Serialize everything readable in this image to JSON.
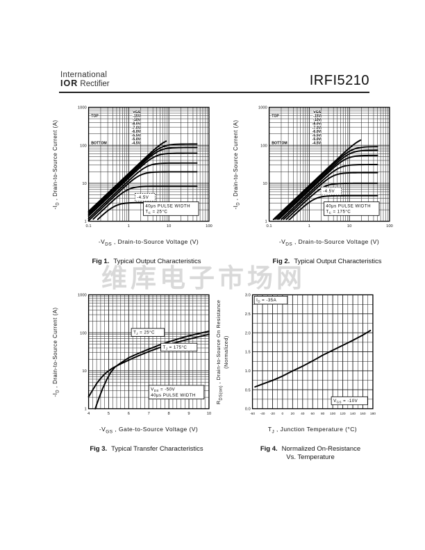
{
  "header": {
    "brand_line1": "International",
    "brand_bold": "IOR",
    "brand_rest": " Rectifier",
    "part_number": "IRFI5210"
  },
  "watermark": "维库电子市场网",
  "figures": [
    {
      "ylabel_pre": "-I",
      "ylabel_sub": "D",
      "ylabel_post": " , Drain-to-Source Current (A)",
      "ylabel_line2": "",
      "xlabel_pre": "-V",
      "xlabel_sub": "DS",
      "xlabel_post": " , Drain-to-Source Voltage (V)",
      "caption_bold": "Fig 1.",
      "caption_text": "Typical Output Characteristics",
      "caption_line2": ""
    },
    {
      "ylabel_pre": "-I",
      "ylabel_sub": "D",
      "ylabel_post": " , Drain-to-Source Current (A)",
      "ylabel_line2": "",
      "xlabel_pre": "-V",
      "xlabel_sub": "DS",
      "xlabel_post": " , Drain-to-Source Voltage (V)",
      "caption_bold": "Fig 2.",
      "caption_text": "Typical Output Characteristics",
      "caption_line2": ""
    },
    {
      "ylabel_pre": "-I",
      "ylabel_sub": "D",
      "ylabel_post": " , Drain-to-Source Current (A)",
      "ylabel_line2": "",
      "xlabel_pre": "-V",
      "xlabel_sub": "GS",
      "xlabel_post": " , Gate-to-Source Voltage (V)",
      "caption_bold": "Fig 3.",
      "caption_text": "Typical Transfer Characteristics",
      "caption_line2": ""
    },
    {
      "ylabel_pre": "R",
      "ylabel_sub": "DS(on)",
      "ylabel_post": " , Drain-to-Source On Resistance",
      "ylabel_line2": "(Normalized)",
      "xlabel_pre": "T",
      "xlabel_sub": "J",
      "xlabel_post": " , Junction Temperature (°C)",
      "caption_bold": "Fig 4.",
      "caption_text": "Normalized On-Resistance",
      "caption_line2": "Vs. Temperature"
    }
  ],
  "chart_data": [
    {
      "type": "line",
      "title": "Fig 1. Typical Output Characteristics",
      "xlabel": "-VDS, Drain-to-Source Voltage (V)",
      "ylabel": "-ID, Drain-to-Source Current (A)",
      "x": {
        "scale": "log",
        "min": 0.1,
        "max": 100,
        "ticks": [
          0.1,
          1,
          10,
          100
        ]
      },
      "y": {
        "scale": "log",
        "min": 1,
        "max": 1000,
        "ticks": [
          1,
          10,
          100,
          1000
        ]
      },
      "legend": {
        "title": "VGS",
        "rows": [
          [
            "TOP",
            "-15V"
          ],
          [
            "",
            "-10V"
          ],
          [
            "",
            "-8.0V"
          ],
          [
            "",
            "-7.0V"
          ],
          [
            "",
            "-6.0V"
          ],
          [
            "",
            "-5.5V"
          ],
          [
            "",
            "-5.0V"
          ],
          [
            "BOTTOM",
            "-4.5V"
          ]
        ]
      },
      "series": [
        {
          "name": "-15V",
          "model": "saturation",
          "rds": 0.055,
          "isat": 160,
          "vmax": 8.5
        },
        {
          "name": "-10V",
          "model": "saturation",
          "rds": 0.06,
          "isat": 108,
          "vmax": 50
        },
        {
          "name": "-8.0V",
          "model": "saturation",
          "rds": 0.066,
          "isat": 88,
          "vmax": 50
        },
        {
          "name": "-7.0V",
          "model": "saturation",
          "rds": 0.073,
          "isat": 62,
          "vmax": 50
        },
        {
          "name": "-6.0V",
          "model": "saturation",
          "rds": 0.085,
          "isat": 34,
          "vmax": 50
        },
        {
          "name": "-5.5V",
          "model": "saturation",
          "rds": 0.097,
          "isat": 20,
          "vmax": 50
        },
        {
          "name": "-5.0V",
          "model": "saturation",
          "rds": 0.115,
          "isat": 8.3,
          "vmax": 50
        },
        {
          "name": "-4.5V",
          "model": "saturation",
          "rds": 0.15,
          "isat": 3.1,
          "vmax": 50
        }
      ],
      "annotations": [
        {
          "t": "-4.5V",
          "fx": 0.385,
          "fy": 0.755,
          "box": "dashed"
        },
        {
          "t": "40μs PULSE WIDTH\nT_{C} = 25°C",
          "fx": 0.455,
          "fy": 0.83,
          "box": "solid"
        }
      ]
    },
    {
      "type": "line",
      "title": "Fig 2. Typical Output Characteristics",
      "xlabel": "-VDS, Drain-to-Source Voltage (V)",
      "ylabel": "-ID, Drain-to-Source Current (A)",
      "x": {
        "scale": "log",
        "min": 0.1,
        "max": 100,
        "ticks": [
          0.1,
          1,
          10,
          100
        ]
      },
      "y": {
        "scale": "log",
        "min": 1,
        "max": 1000,
        "ticks": [
          1,
          10,
          100,
          1000
        ]
      },
      "legend": {
        "title": "VGS",
        "rows": [
          [
            "TOP",
            "-15V"
          ],
          [
            "",
            "-10V"
          ],
          [
            "",
            "-8.0V"
          ],
          [
            "",
            "-7.0V"
          ],
          [
            "",
            "-6.0V"
          ],
          [
            "",
            "-5.5V"
          ],
          [
            "",
            "-5.0V"
          ],
          [
            "BOTTOM",
            "-4.5V"
          ]
        ]
      },
      "series": [
        {
          "name": "-15V",
          "model": "saturation",
          "rds": 0.115,
          "isat": 170,
          "vmax": 19
        },
        {
          "name": "-10V",
          "model": "saturation",
          "rds": 0.125,
          "isat": 92,
          "vmax": 50
        },
        {
          "name": "-8.0V",
          "model": "saturation",
          "rds": 0.14,
          "isat": 74,
          "vmax": 50
        },
        {
          "name": "-7.0V",
          "model": "saturation",
          "rds": 0.155,
          "isat": 54,
          "vmax": 50
        },
        {
          "name": "-6.0V",
          "model": "saturation",
          "rds": 0.18,
          "isat": 31,
          "vmax": 50
        },
        {
          "name": "-5.5V",
          "model": "saturation",
          "rds": 0.205,
          "isat": 19,
          "vmax": 50
        },
        {
          "name": "-5.0V",
          "model": "saturation",
          "rds": 0.24,
          "isat": 10,
          "vmax": 50
        },
        {
          "name": "-4.5V",
          "model": "saturation",
          "rds": 0.29,
          "isat": 4.7,
          "vmax": 50
        }
      ],
      "annotations": [
        {
          "t": "-4.5V",
          "fx": 0.43,
          "fy": 0.7,
          "box": "dashed"
        },
        {
          "t": "40μs PULSE WIDTH\nT_{C} = 175°C",
          "fx": 0.455,
          "fy": 0.83,
          "box": "solid"
        }
      ]
    },
    {
      "type": "line",
      "title": "Fig 3. Typical Transfer Characteristics",
      "xlabel": "-VGS, Gate-to-Source Voltage (V)",
      "ylabel": "-ID, Drain-to-Source Current (A)",
      "x": {
        "scale": "linear",
        "min": 4,
        "max": 10,
        "minor": 0.2,
        "ticks": [
          4,
          5,
          6,
          7,
          8,
          9,
          10
        ]
      },
      "y": {
        "scale": "log",
        "min": 1,
        "max": 1000,
        "ticks": [
          1,
          10,
          100,
          1000
        ]
      },
      "series": [
        {
          "name": "TJ = 25°C",
          "points": [
            [
              4.33,
              1
            ],
            [
              4.5,
              1.8
            ],
            [
              4.7,
              3.4
            ],
            [
              4.9,
              5.8
            ],
            [
              5.1,
              9
            ],
            [
              5.3,
              12.3
            ],
            [
              5.6,
              16
            ],
            [
              6,
              22
            ],
            [
              6.5,
              29
            ],
            [
              7,
              37
            ],
            [
              7.5,
              47
            ],
            [
              8,
              58
            ],
            [
              8.5,
              70
            ],
            [
              9,
              83
            ],
            [
              9.5,
              96
            ],
            [
              10,
              110
            ]
          ]
        },
        {
          "name": "TJ = 175°C",
          "points": [
            [
              4.0,
              2.05
            ],
            [
              4.2,
              3.1
            ],
            [
              4.4,
              4.6
            ],
            [
              4.6,
              6.3
            ],
            [
              4.8,
              8.2
            ],
            [
              5.0,
              10
            ],
            [
              5.2,
              11.8
            ],
            [
              5.5,
              14.3
            ],
            [
              6,
              19
            ],
            [
              6.5,
              25
            ],
            [
              7,
              32
            ],
            [
              7.5,
              40
            ],
            [
              8,
              49
            ],
            [
              8.5,
              58
            ],
            [
              9,
              68
            ],
            [
              9.5,
              79
            ],
            [
              10,
              91
            ]
          ]
        }
      ],
      "annotations": [
        {
          "t": "T_{J} = 25°C",
          "fx": 0.355,
          "fy": 0.295,
          "box": "solid"
        },
        {
          "t": "T_{J} = 175°C",
          "fx": 0.6,
          "fy": 0.425,
          "box": "solid"
        },
        {
          "t": "V_{DS} = -50V\n40μs PULSE WIDTH",
          "fx": 0.5,
          "fy": 0.795,
          "box": "solid"
        }
      ]
    },
    {
      "type": "line",
      "title": "Fig 4. Normalized On-Resistance Vs. Temperature",
      "xlabel": "TJ, Junction Temperature (°C)",
      "ylabel": "RDS(on), Drain-to-Source On Resistance (Normalized)",
      "x": {
        "scale": "linear",
        "min": -60,
        "max": 180,
        "minor": 10,
        "tickFont": 5.2,
        "ticks": [
          -60,
          -40,
          -20,
          0,
          20,
          40,
          60,
          80,
          100,
          120,
          140,
          160,
          180
        ]
      },
      "y": {
        "scale": "linear",
        "min": 0,
        "max": 3,
        "minor": 0.25,
        "tickFormat": 1,
        "ticks": [
          0,
          0.5,
          1,
          1.5,
          2,
          2.5,
          3
        ]
      },
      "series": [
        {
          "name": "RDS(on) normalized",
          "points": [
            [
              -55,
              0.575
            ],
            [
              -40,
              0.65
            ],
            [
              -20,
              0.745
            ],
            [
              0,
              0.86
            ],
            [
              20,
              0.995
            ],
            [
              40,
              1.12
            ],
            [
              60,
              1.26
            ],
            [
              80,
              1.41
            ],
            [
              100,
              1.54
            ],
            [
              120,
              1.67
            ],
            [
              140,
              1.8
            ],
            [
              160,
              1.94
            ],
            [
              175,
              2.06
            ]
          ]
        }
      ],
      "annotations": [
        {
          "t": "I_{D} = -35A",
          "fx": 0.015,
          "fy": 0.012,
          "box": "solid"
        },
        {
          "t": "V_{GS} = -10V",
          "fx": 0.655,
          "fy": 0.895,
          "box": "solid"
        }
      ]
    }
  ]
}
